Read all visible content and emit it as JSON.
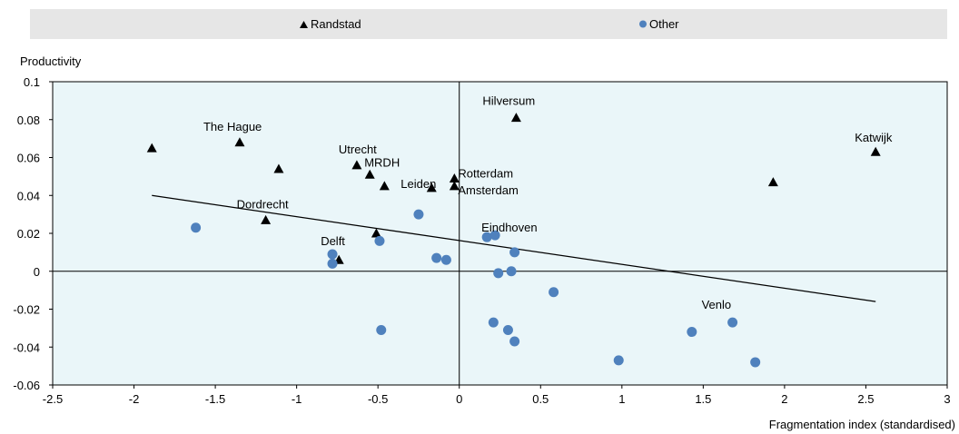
{
  "chart_data": {
    "type": "scatter",
    "xlabel": "Fragmentation index (standardised)",
    "ylabel": "Productivity",
    "xlim": [
      -2.5,
      3
    ],
    "ylim": [
      -0.06,
      0.1
    ],
    "xticks": [
      -2.5,
      -2,
      -1.5,
      -1,
      -0.5,
      0,
      0.5,
      1,
      1.5,
      2,
      2.5,
      3
    ],
    "yticks": [
      -0.06,
      -0.04,
      -0.02,
      0,
      0.02,
      0.04,
      0.06,
      0.08,
      0.1
    ],
    "xtick_labels": [
      "-2.5",
      "-2",
      "-1.5",
      "-1",
      "-0.5",
      "0",
      "0.5",
      "1",
      "1.5",
      "2",
      "2.5",
      "3"
    ],
    "ytick_labels": [
      "-0.06",
      "-0.04",
      "-0.02",
      "0",
      "0.02",
      "0.04",
      "0.06",
      "0.08",
      "0.1"
    ],
    "legend_placement": "top",
    "colors": {
      "Randstad": "#000000",
      "Other": "#4f81bd",
      "plot_bg": "#eaf6f9",
      "legend_bg": "#e6e6e6"
    },
    "series": [
      {
        "name": "Randstad",
        "marker": "triangle",
        "points": [
          {
            "x": -1.89,
            "y": 0.065,
            "label": ""
          },
          {
            "x": -1.35,
            "y": 0.068,
            "label": "The Hague"
          },
          {
            "x": -1.11,
            "y": 0.054,
            "label": ""
          },
          {
            "x": -1.19,
            "y": 0.027,
            "label": "Dordrecht"
          },
          {
            "x": -0.63,
            "y": 0.056,
            "label": "Utrecht"
          },
          {
            "x": -0.55,
            "y": 0.051,
            "label": "MRDH"
          },
          {
            "x": -0.46,
            "y": 0.045,
            "label": ""
          },
          {
            "x": -0.17,
            "y": 0.044,
            "label": "Leiden"
          },
          {
            "x": -0.03,
            "y": 0.049,
            "label": "Rotterdam"
          },
          {
            "x": -0.03,
            "y": 0.045,
            "label": "Amsterdam"
          },
          {
            "x": -0.51,
            "y": 0.02,
            "label": ""
          },
          {
            "x": -0.74,
            "y": 0.006,
            "label": "Delft"
          },
          {
            "x": 0.35,
            "y": 0.081,
            "label": "Hilversum"
          },
          {
            "x": 1.93,
            "y": 0.047,
            "label": ""
          },
          {
            "x": 2.56,
            "y": 0.063,
            "label": "Katwijk"
          }
        ]
      },
      {
        "name": "Other",
        "marker": "circle",
        "points": [
          {
            "x": -1.62,
            "y": 0.023,
            "label": ""
          },
          {
            "x": -0.78,
            "y": 0.009,
            "label": ""
          },
          {
            "x": -0.78,
            "y": 0.004,
            "label": ""
          },
          {
            "x": -0.49,
            "y": 0.016,
            "label": ""
          },
          {
            "x": -0.48,
            "y": -0.031,
            "label": ""
          },
          {
            "x": -0.25,
            "y": 0.03,
            "label": ""
          },
          {
            "x": -0.14,
            "y": 0.007,
            "label": ""
          },
          {
            "x": -0.08,
            "y": 0.006,
            "label": ""
          },
          {
            "x": 0.17,
            "y": 0.018,
            "label": "Eindhoven"
          },
          {
            "x": 0.22,
            "y": 0.019,
            "label": ""
          },
          {
            "x": 0.34,
            "y": 0.01,
            "label": ""
          },
          {
            "x": 0.24,
            "y": -0.001,
            "label": ""
          },
          {
            "x": 0.32,
            "y": 0.0,
            "label": ""
          },
          {
            "x": 0.58,
            "y": -0.011,
            "label": ""
          },
          {
            "x": 0.21,
            "y": -0.027,
            "label": ""
          },
          {
            "x": 0.3,
            "y": -0.031,
            "label": ""
          },
          {
            "x": 0.34,
            "y": -0.037,
            "label": ""
          },
          {
            "x": 0.98,
            "y": -0.047,
            "label": ""
          },
          {
            "x": 1.43,
            "y": -0.032,
            "label": ""
          },
          {
            "x": 1.68,
            "y": -0.027,
            "label": "Venlo"
          },
          {
            "x": 1.82,
            "y": -0.048,
            "label": ""
          }
        ]
      }
    ],
    "trendline": {
      "x": [
        -1.89,
        2.56
      ],
      "y": [
        0.04,
        -0.016
      ]
    }
  }
}
